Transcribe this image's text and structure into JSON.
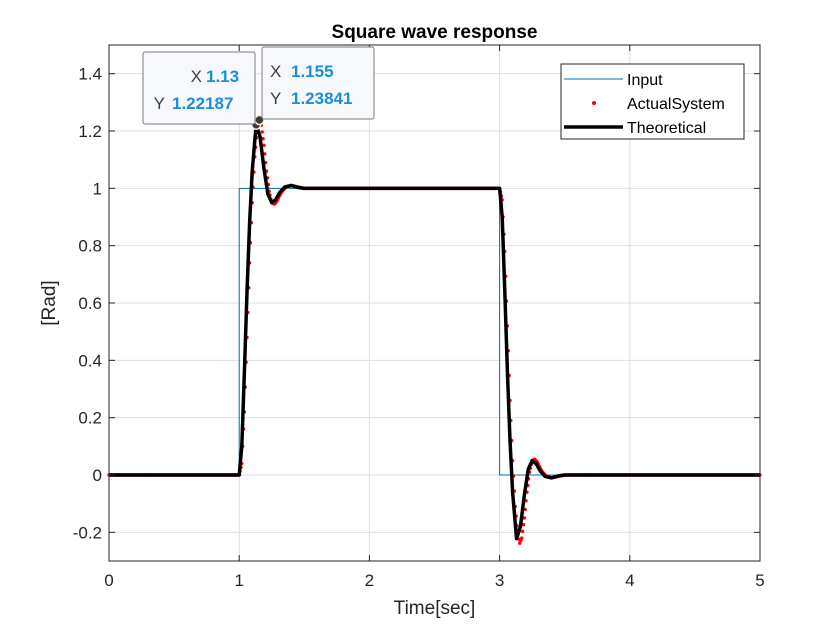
{
  "chart_data": {
    "type": "line",
    "title": "Square wave response",
    "xlabel": "Time[sec]",
    "ylabel": "[Rad]",
    "xlim": [
      0,
      5
    ],
    "ylim": [
      -0.3,
      1.5
    ],
    "xticks": [
      0,
      1,
      2,
      3,
      4,
      5
    ],
    "xtick_labels": [
      "0",
      "1",
      "2",
      "3",
      "4",
      "5"
    ],
    "yticks": [
      -0.2,
      0,
      0.2,
      0.4,
      0.6,
      0.8,
      1,
      1.2,
      1.4
    ],
    "ytick_labels": [
      "-0.2",
      "0",
      "0.2",
      "0.4",
      "0.6",
      "0.8",
      "1",
      "1.2",
      "1.4"
    ],
    "grid": true,
    "legend_position": "top-right",
    "series": [
      {
        "name": "Input",
        "style": "line",
        "color": "#0072bd",
        "x": [
          0,
          1,
          1,
          3,
          3,
          5,
          5
        ],
        "y": [
          0,
          0,
          1,
          1,
          0,
          0,
          1
        ]
      },
      {
        "name": "ActualSystem",
        "style": "dots",
        "color": "#ff0000",
        "x": [
          0,
          0.2,
          0.4,
          0.6,
          0.8,
          1.0,
          1.02,
          1.04,
          1.06,
          1.08,
          1.1,
          1.12,
          1.14,
          1.155,
          1.17,
          1.19,
          1.21,
          1.23,
          1.25,
          1.27,
          1.29,
          1.31,
          1.33,
          1.36,
          1.4,
          1.45,
          1.5,
          1.6,
          1.8,
          2.0,
          2.5,
          3.0,
          3.02,
          3.04,
          3.06,
          3.08,
          3.1,
          3.12,
          3.14,
          3.155,
          3.17,
          3.19,
          3.21,
          3.23,
          3.25,
          3.27,
          3.29,
          3.31,
          3.33,
          3.36,
          3.4,
          3.45,
          3.5,
          3.6,
          3.8,
          4.0,
          4.5,
          5.0
        ],
        "y": [
          0,
          0,
          0,
          0,
          0,
          0,
          0.04,
          0.22,
          0.48,
          0.74,
          0.95,
          1.11,
          1.21,
          1.23841,
          1.22,
          1.15,
          1.06,
          0.99,
          0.95,
          0.945,
          0.955,
          0.975,
          0.99,
          1.005,
          1.01,
          1.005,
          1.0,
          1.0,
          1.0,
          1.0,
          1.0,
          1.0,
          0.96,
          0.78,
          0.52,
          0.26,
          0.05,
          -0.11,
          -0.21,
          -0.238,
          -0.22,
          -0.15,
          -0.06,
          0.01,
          0.05,
          0.055,
          0.045,
          0.025,
          0.01,
          -0.005,
          -0.01,
          -0.005,
          0,
          0,
          0,
          0,
          0,
          0
        ]
      },
      {
        "name": "Theoretical",
        "style": "thick-line",
        "color": "#000000",
        "x": [
          0,
          1.0,
          1.02,
          1.04,
          1.06,
          1.08,
          1.1,
          1.13,
          1.16,
          1.19,
          1.22,
          1.25,
          1.28,
          1.31,
          1.35,
          1.4,
          1.45,
          1.5,
          1.6,
          2.0,
          3.0,
          3.02,
          3.04,
          3.06,
          3.08,
          3.1,
          3.13,
          3.16,
          3.19,
          3.22,
          3.25,
          3.28,
          3.31,
          3.35,
          3.4,
          3.45,
          3.5,
          3.6,
          4.0,
          5.0
        ],
        "y": [
          0,
          0,
          0.1,
          0.36,
          0.64,
          0.88,
          1.06,
          1.22187,
          1.18,
          1.07,
          0.98,
          0.95,
          0.96,
          0.985,
          1.005,
          1.01,
          1.003,
          1.0,
          1.0,
          1.0,
          1.0,
          0.9,
          0.64,
          0.36,
          0.12,
          -0.06,
          -0.22187,
          -0.18,
          -0.07,
          0.02,
          0.05,
          0.04,
          0.015,
          -0.005,
          -0.01,
          -0.003,
          0,
          0,
          0,
          0
        ]
      }
    ],
    "datatips": [
      {
        "x_label": "X",
        "x_value": "1.13",
        "y_label": "Y",
        "y_value": "1.22187",
        "x": 1.13,
        "y": 1.22187
      },
      {
        "x_label": "X",
        "x_value": "1.155",
        "y_label": "Y",
        "y_value": "1.23841",
        "x": 1.155,
        "y": 1.23841
      }
    ]
  }
}
